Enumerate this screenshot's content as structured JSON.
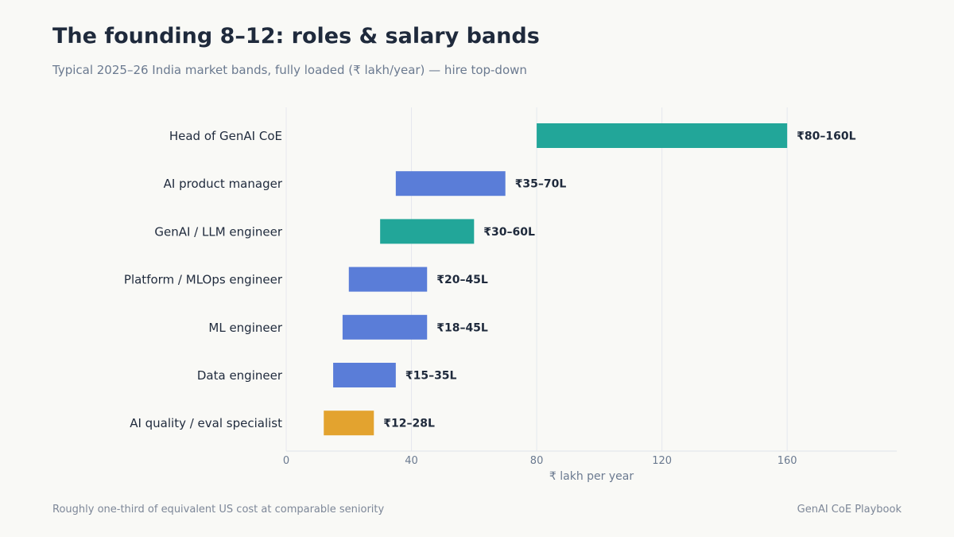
{
  "header": {
    "title": "The founding 8–12: roles & salary bands",
    "subtitle": "Typical 2025–26 India market bands, fully loaded (₹ lakh/year) — hire top-down"
  },
  "footer": {
    "note": "Roughly one-third of equivalent US cost at comparable seniority",
    "source": "GenAI CoE Playbook"
  },
  "colors": {
    "teal": "#22a699",
    "blue": "#5a7dd8",
    "amber": "#e3a32f"
  },
  "chart_data": {
    "type": "bar",
    "orientation": "horizontal",
    "subtype": "range",
    "xlabel": "₹ lakh per year",
    "xlim": [
      0,
      195
    ],
    "xticks": [
      0,
      40,
      80,
      120,
      160
    ],
    "grid": true,
    "categories": [
      "Head of GenAI CoE",
      "AI product manager",
      "GenAI / LLM engineer",
      "Platform / MLOps engineer",
      "ML engineer",
      "Data engineer",
      "AI quality / eval specialist"
    ],
    "ranges": [
      {
        "low": 80,
        "high": 160,
        "label": "₹80–160L",
        "color": "teal"
      },
      {
        "low": 35,
        "high": 70,
        "label": "₹35–70L",
        "color": "blue"
      },
      {
        "low": 30,
        "high": 60,
        "label": "₹30–60L",
        "color": "teal"
      },
      {
        "low": 20,
        "high": 45,
        "label": "₹20–45L",
        "color": "blue"
      },
      {
        "low": 18,
        "high": 45,
        "label": "₹18–45L",
        "color": "blue"
      },
      {
        "low": 15,
        "high": 35,
        "label": "₹15–35L",
        "color": "blue"
      },
      {
        "low": 12,
        "high": 28,
        "label": "₹12–28L",
        "color": "amber"
      }
    ]
  }
}
